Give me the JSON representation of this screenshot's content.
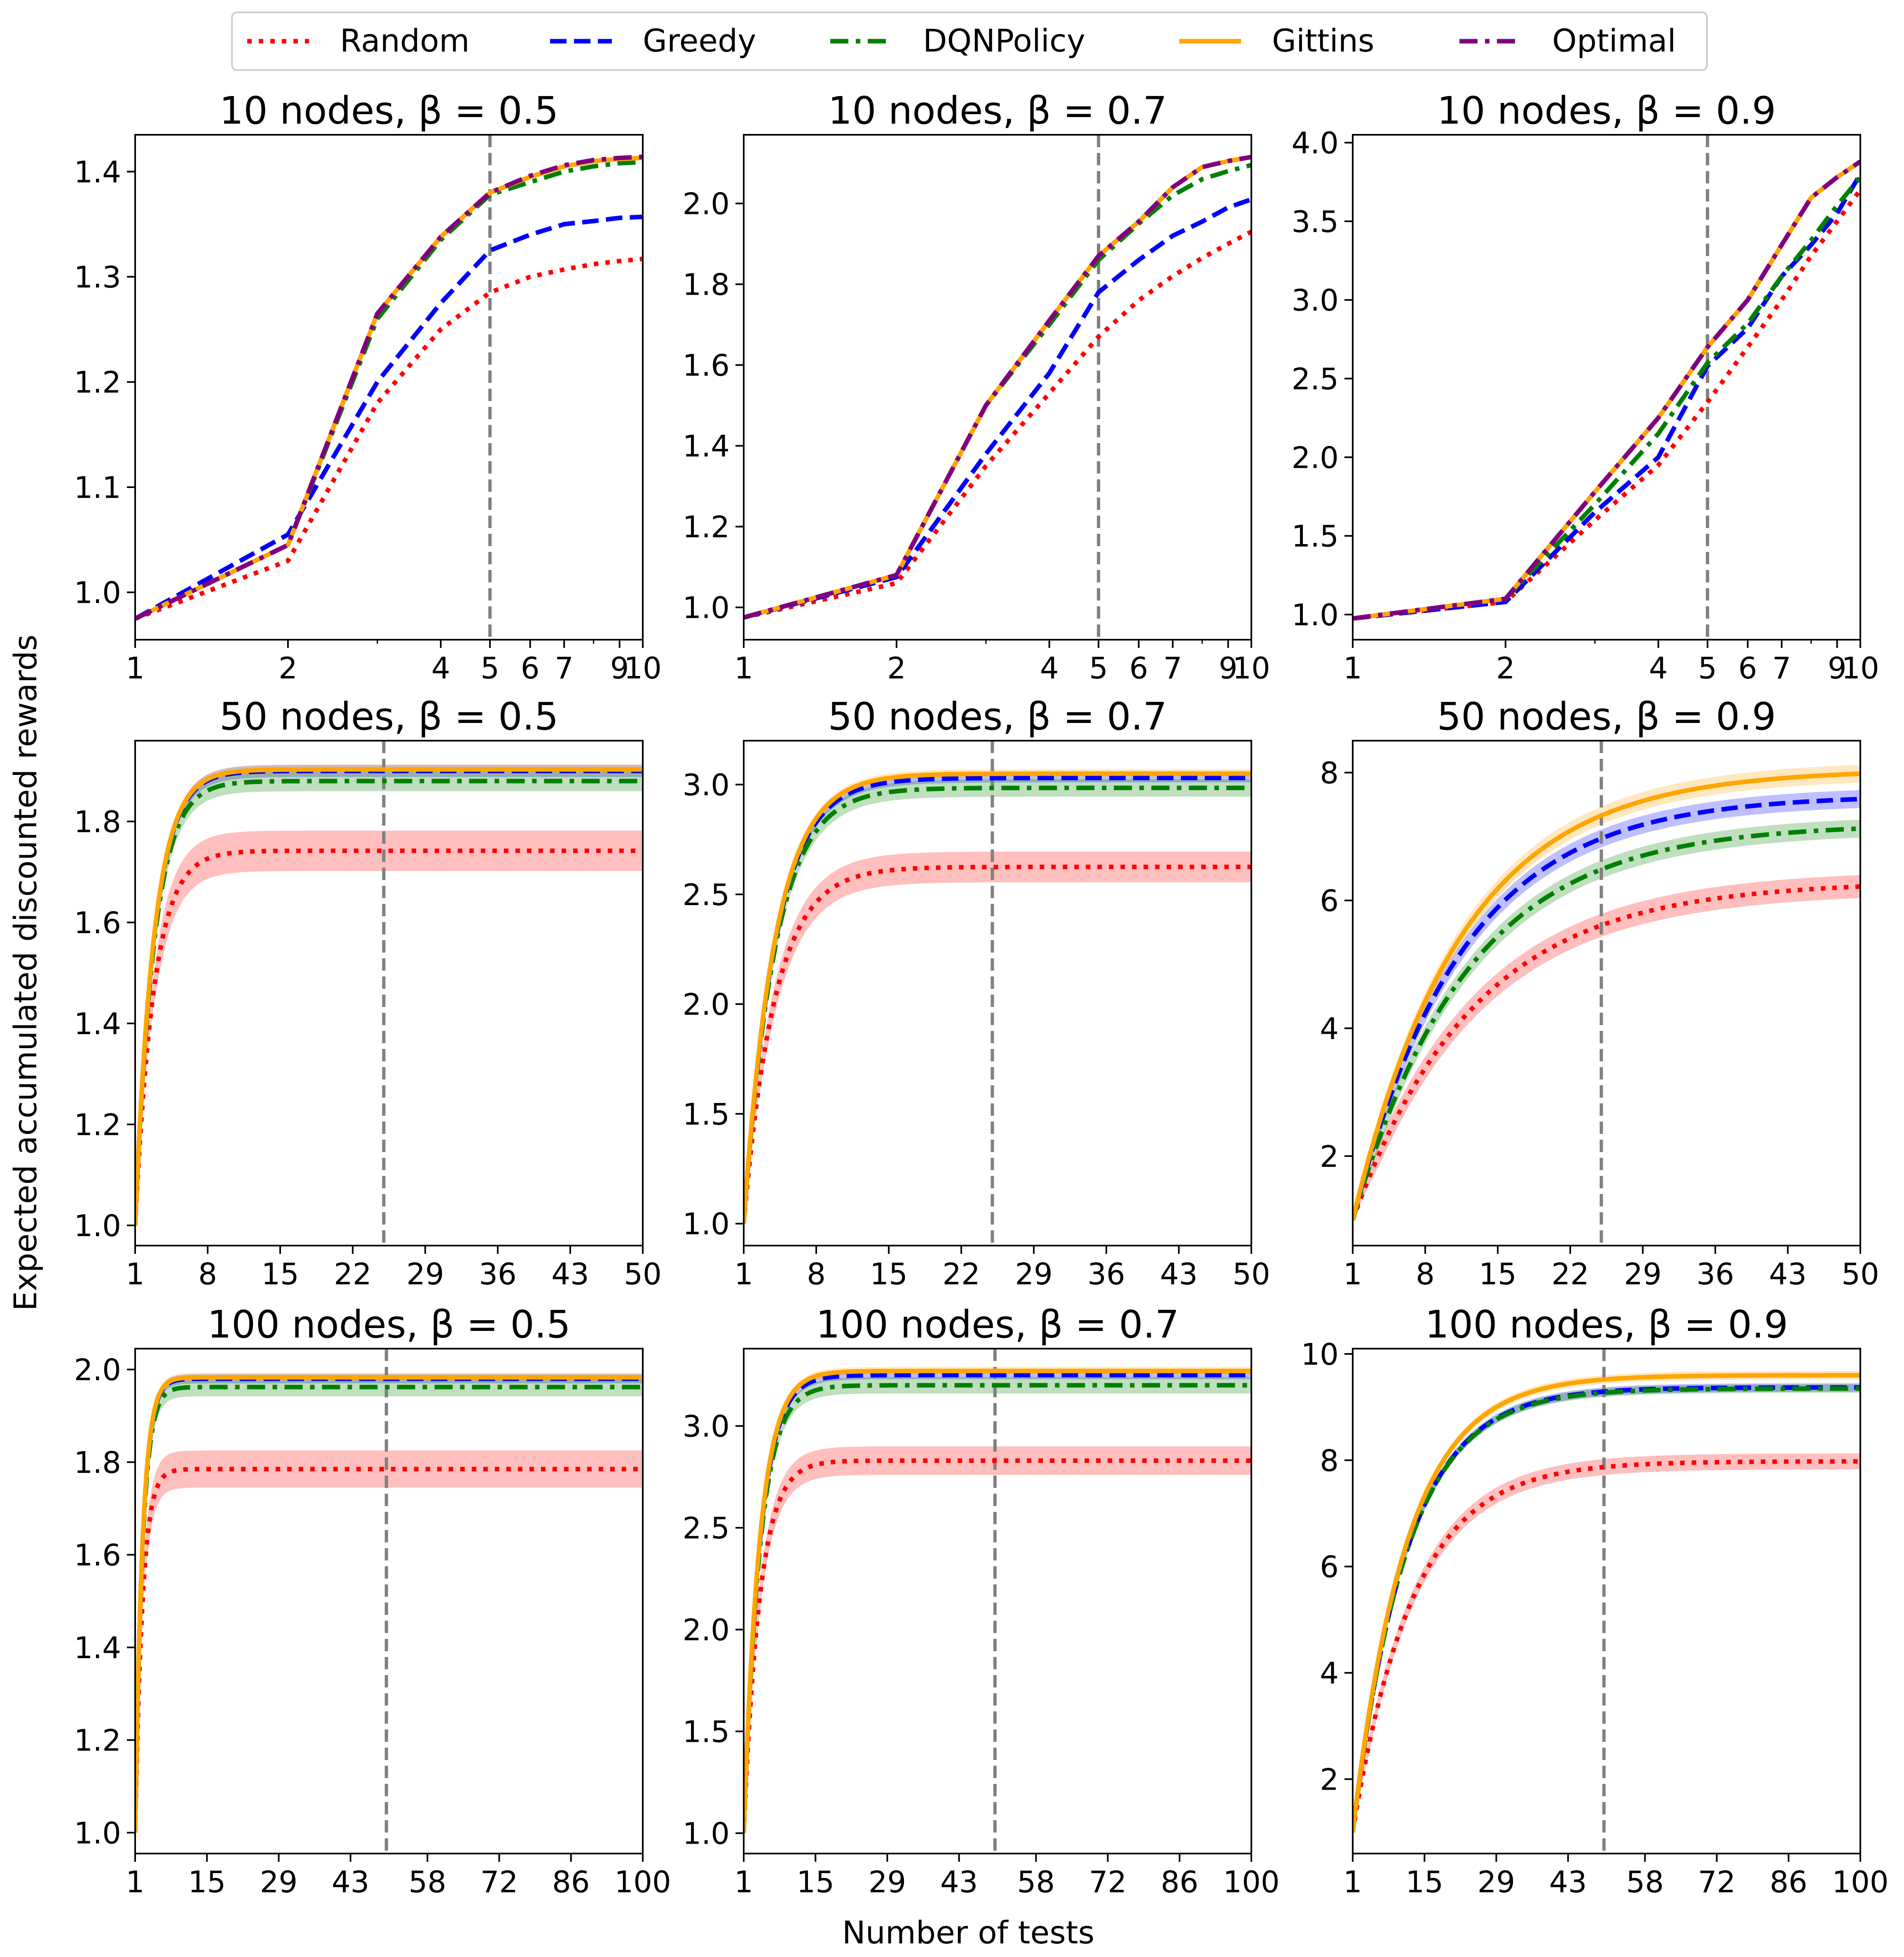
{
  "figure": {
    "ylabel": "Expected accumulated discounted rewards",
    "xlabel": "Number of tests"
  },
  "legend": {
    "placement": "top-center",
    "entries": [
      {
        "name": "Random",
        "color": "#ff0000",
        "style": "dotted"
      },
      {
        "name": "Greedy",
        "color": "#0000ff",
        "style": "dashed"
      },
      {
        "name": "DQNPolicy",
        "color": "#008000",
        "style": "dashdot"
      },
      {
        "name": "Gittins",
        "color": "#ffa500",
        "style": "solid"
      },
      {
        "name": "Optimal",
        "color": "#800080",
        "style": "dashdot"
      }
    ]
  },
  "chart_data": [
    {
      "type": "line",
      "title": "10 nodes, β = 0.5",
      "xlim": [
        1,
        10
      ],
      "ylim": [
        0.955,
        1.435
      ],
      "xticks": [
        1,
        2,
        4,
        5,
        6,
        7,
        9,
        10
      ],
      "yticks": [
        1.0,
        1.1,
        1.2,
        1.3,
        1.4
      ],
      "ytick_labels": [
        "1.0",
        "1.1",
        "1.2",
        "1.3",
        "1.4"
      ],
      "vline": 5,
      "x": [
        1,
        2,
        3,
        4,
        5,
        6,
        7,
        8,
        9,
        10
      ],
      "series": [
        {
          "name": "Random",
          "values": [
            0.975,
            1.03,
            1.18,
            1.25,
            1.285,
            1.3,
            1.307,
            1.312,
            1.315,
            1.317
          ]
        },
        {
          "name": "Greedy",
          "values": [
            0.975,
            1.055,
            1.2,
            1.275,
            1.325,
            1.34,
            1.35,
            1.353,
            1.356,
            1.357
          ]
        },
        {
          "name": "DQNPolicy",
          "values": [
            0.975,
            1.045,
            1.26,
            1.335,
            1.378,
            1.39,
            1.4,
            1.405,
            1.408,
            1.409
          ]
        },
        {
          "name": "Gittins",
          "values": [
            0.975,
            1.045,
            1.265,
            1.338,
            1.38,
            1.395,
            1.405,
            1.41,
            1.412,
            1.413
          ]
        },
        {
          "name": "Optimal",
          "values": [
            0.975,
            1.045,
            1.265,
            1.338,
            1.38,
            1.396,
            1.406,
            1.411,
            1.413,
            1.414
          ]
        }
      ],
      "bands": {}
    },
    {
      "type": "line",
      "title": "10 nodes, β = 0.7",
      "xlim": [
        1,
        10
      ],
      "ylim": [
        0.92,
        2.17
      ],
      "xticks": [
        1,
        2,
        4,
        5,
        6,
        7,
        9,
        10
      ],
      "yticks": [
        1.0,
        1.2,
        1.4,
        1.6,
        1.8,
        2.0
      ],
      "ytick_labels": [
        "1.0",
        "1.2",
        "1.4",
        "1.6",
        "1.8",
        "2.0"
      ],
      "vline": 5,
      "x": [
        1,
        2,
        3,
        4,
        5,
        6,
        7,
        8,
        9,
        10
      ],
      "series": [
        {
          "name": "Random",
          "values": [
            0.975,
            1.06,
            1.35,
            1.53,
            1.67,
            1.76,
            1.82,
            1.865,
            1.9,
            1.93
          ]
        },
        {
          "name": "Greedy",
          "values": [
            0.975,
            1.075,
            1.38,
            1.58,
            1.78,
            1.86,
            1.92,
            1.955,
            1.99,
            2.01
          ]
        },
        {
          "name": "DQNPolicy",
          "values": [
            0.975,
            1.08,
            1.5,
            1.7,
            1.86,
            1.95,
            2.02,
            2.06,
            2.08,
            2.095
          ]
        },
        {
          "name": "Gittins",
          "values": [
            0.975,
            1.08,
            1.5,
            1.71,
            1.87,
            1.955,
            2.04,
            2.09,
            2.105,
            2.115
          ]
        },
        {
          "name": "Optimal",
          "values": [
            0.975,
            1.08,
            1.5,
            1.71,
            1.87,
            1.955,
            2.04,
            2.09,
            2.105,
            2.115
          ]
        }
      ],
      "bands": {}
    },
    {
      "type": "line",
      "title": "10 nodes, β = 0.9",
      "xlim": [
        1,
        10
      ],
      "ylim": [
        0.84,
        4.05
      ],
      "xticks": [
        1,
        2,
        4,
        5,
        6,
        7,
        9,
        10
      ],
      "yticks": [
        1.0,
        1.5,
        2.0,
        2.5,
        3.0,
        3.5,
        4.0
      ],
      "ytick_labels": [
        "1.0",
        "1.5",
        "2.0",
        "2.5",
        "3.0",
        "3.5",
        "4.0"
      ],
      "vline": 5,
      "x": [
        1,
        2,
        3,
        4,
        5,
        6,
        7,
        8,
        9,
        10
      ],
      "series": [
        {
          "name": "Random",
          "values": [
            0.975,
            1.08,
            1.6,
            1.95,
            2.35,
            2.7,
            3.0,
            3.28,
            3.5,
            3.7
          ]
        },
        {
          "name": "Greedy",
          "values": [
            0.975,
            1.08,
            1.65,
            2.0,
            2.58,
            2.82,
            3.15,
            3.35,
            3.55,
            3.8
          ]
        },
        {
          "name": "DQNPolicy",
          "values": [
            0.975,
            1.1,
            1.7,
            2.15,
            2.6,
            2.85,
            3.15,
            3.38,
            3.6,
            3.78
          ]
        },
        {
          "name": "Gittins",
          "values": [
            0.975,
            1.1,
            1.78,
            2.25,
            2.7,
            3.0,
            3.35,
            3.65,
            3.78,
            3.88
          ]
        },
        {
          "name": "Optimal",
          "values": [
            0.975,
            1.1,
            1.78,
            2.25,
            2.7,
            3.0,
            3.35,
            3.65,
            3.78,
            3.88
          ]
        }
      ],
      "bands": {}
    },
    {
      "type": "line",
      "title": "50 nodes, β = 0.5",
      "xlim": [
        1,
        50
      ],
      "ylim": [
        0.96,
        1.96
      ],
      "xticks": [
        1,
        8,
        15,
        22,
        29,
        36,
        43,
        50
      ],
      "yticks": [
        1.0,
        1.2,
        1.4,
        1.6,
        1.8
      ],
      "ytick_labels": [
        "1.0",
        "1.2",
        "1.4",
        "1.6",
        "1.8"
      ],
      "vline": 25,
      "curves": [
        {
          "name": "Random",
          "start": 1.0,
          "final": 1.742,
          "rate": 0.55
        },
        {
          "name": "Greedy",
          "start": 1.0,
          "final": 1.9,
          "rate": 0.55
        },
        {
          "name": "DQNPolicy",
          "start": 1.0,
          "final": 1.88,
          "rate": 0.55
        },
        {
          "name": "Gittins",
          "start": 1.0,
          "final": 1.903,
          "rate": 0.55
        }
      ],
      "bands": {
        "Random": 0.04,
        "Greedy": 0.012,
        "DQNPolicy": 0.02,
        "Gittins": 0.01
      }
    },
    {
      "type": "line",
      "title": "50 nodes, β = 0.7",
      "xlim": [
        1,
        50
      ],
      "ylim": [
        0.9,
        3.2
      ],
      "xticks": [
        1,
        8,
        15,
        22,
        29,
        36,
        43,
        50
      ],
      "yticks": [
        1.0,
        1.5,
        2.0,
        2.5,
        3.0
      ],
      "ytick_labels": [
        "1.0",
        "1.5",
        "2.0",
        "2.5",
        "3.0"
      ],
      "vline": 25,
      "curves": [
        {
          "name": "Random",
          "start": 1.0,
          "final": 2.625,
          "rate": 0.33
        },
        {
          "name": "Greedy",
          "start": 1.0,
          "final": 3.03,
          "rate": 0.33
        },
        {
          "name": "DQNPolicy",
          "start": 1.0,
          "final": 2.985,
          "rate": 0.33
        },
        {
          "name": "Gittins",
          "start": 1.0,
          "final": 3.05,
          "rate": 0.33
        }
      ],
      "bands": {
        "Random": 0.07,
        "Greedy": 0.02,
        "DQNPolicy": 0.04,
        "Gittins": 0.02
      }
    },
    {
      "type": "line",
      "title": "50 nodes, β = 0.9",
      "xlim": [
        1,
        50
      ],
      "ylim": [
        0.6,
        8.5
      ],
      "xticks": [
        1,
        8,
        15,
        22,
        29,
        36,
        43,
        50
      ],
      "yticks": [
        2,
        4,
        6,
        8
      ],
      "ytick_labels": [
        "2",
        "4",
        "6",
        "8"
      ],
      "vline": 25,
      "curves": [
        {
          "name": "Random",
          "start": 1.0,
          "final": 6.3,
          "rate": 0.085
        },
        {
          "name": "Greedy",
          "start": 1.0,
          "final": 7.65,
          "rate": 0.095
        },
        {
          "name": "DQNPolicy",
          "start": 1.0,
          "final": 7.2,
          "rate": 0.09
        },
        {
          "name": "Gittins",
          "start": 1.0,
          "final": 8.05,
          "rate": 0.095
        }
      ],
      "bands": {
        "Random": 0.18,
        "Greedy": 0.14,
        "DQNPolicy": 0.14,
        "Gittins": 0.14
      }
    },
    {
      "type": "line",
      "title": "100 nodes, β = 0.5",
      "xlim": [
        1,
        100
      ],
      "ylim": [
        0.955,
        2.045
      ],
      "xticks": [
        1,
        15,
        29,
        43,
        58,
        72,
        86,
        100
      ],
      "yticks": [
        1.0,
        1.2,
        1.4,
        1.6,
        1.8,
        2.0
      ],
      "ytick_labels": [
        "1.0",
        "1.2",
        "1.4",
        "1.6",
        "1.8",
        "2.0"
      ],
      "vline": 50,
      "curves": [
        {
          "name": "Random",
          "start": 1.0,
          "final": 1.785,
          "rate": 0.7
        },
        {
          "name": "Greedy",
          "start": 1.0,
          "final": 1.98,
          "rate": 0.7
        },
        {
          "name": "DQNPolicy",
          "start": 1.0,
          "final": 1.962,
          "rate": 0.7
        },
        {
          "name": "Gittins",
          "start": 1.0,
          "final": 1.983,
          "rate": 0.7
        }
      ],
      "bands": {
        "Random": 0.04,
        "Greedy": 0.01,
        "DQNPolicy": 0.02,
        "Gittins": 0.01
      }
    },
    {
      "type": "line",
      "title": "100 nodes, β = 0.7",
      "xlim": [
        1,
        100
      ],
      "ylim": [
        0.9,
        3.38
      ],
      "xticks": [
        1,
        15,
        29,
        43,
        58,
        72,
        86,
        100
      ],
      "yticks": [
        1.0,
        1.5,
        2.0,
        2.5,
        3.0
      ],
      "ytick_labels": [
        "1.0",
        "1.5",
        "2.0",
        "2.5",
        "3.0"
      ],
      "vline": 50,
      "curves": [
        {
          "name": "Random",
          "start": 1.0,
          "final": 2.83,
          "rate": 0.32
        },
        {
          "name": "Greedy",
          "start": 1.0,
          "final": 3.25,
          "rate": 0.32
        },
        {
          "name": "DQNPolicy",
          "start": 1.0,
          "final": 3.2,
          "rate": 0.32
        },
        {
          "name": "Gittins",
          "start": 1.0,
          "final": 3.27,
          "rate": 0.32
        }
      ],
      "bands": {
        "Random": 0.07,
        "Greedy": 0.02,
        "DQNPolicy": 0.04,
        "Gittins": 0.02
      }
    },
    {
      "type": "line",
      "title": "100 nodes, β = 0.9",
      "xlim": [
        1,
        100
      ],
      "ylim": [
        0.6,
        10.1
      ],
      "xticks": [
        1,
        15,
        29,
        43,
        58,
        72,
        86,
        100
      ],
      "yticks": [
        2,
        4,
        6,
        8,
        10
      ],
      "ytick_labels": [
        "2",
        "4",
        "6",
        "8",
        "10"
      ],
      "vline": 50,
      "curves": [
        {
          "name": "Random",
          "start": 1.0,
          "final": 7.98,
          "rate": 0.085
        },
        {
          "name": "Greedy",
          "start": 1.0,
          "final": 9.37,
          "rate": 0.095
        },
        {
          "name": "DQNPolicy",
          "start": 1.0,
          "final": 9.35,
          "rate": 0.095
        },
        {
          "name": "Gittins",
          "start": 1.0,
          "final": 9.6,
          "rate": 0.095
        }
      ],
      "bands": {
        "Random": 0.15,
        "Greedy": 0.08,
        "DQNPolicy": 0.08,
        "Gittins": 0.08
      }
    }
  ]
}
